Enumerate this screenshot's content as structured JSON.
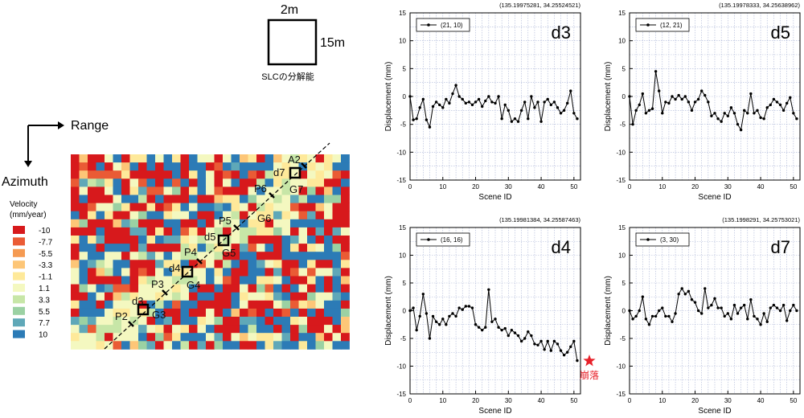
{
  "resolution_box": {
    "width_label": "2m",
    "height_label": "15m",
    "caption": "SLCの分解能"
  },
  "axes_labels": {
    "range": "Range",
    "azimuth": "Azimuth"
  },
  "legend": {
    "title_line1": "Velocity",
    "title_line2": "(mm/year)",
    "items": [
      {
        "label": "-10",
        "color": "#d7191c"
      },
      {
        "label": "-7.7",
        "color": "#ea5b35"
      },
      {
        "label": "-5.5",
        "color": "#f59a52"
      },
      {
        "label": "-3.3",
        "color": "#fdc677"
      },
      {
        "label": "-1.1",
        "color": "#fee99a"
      },
      {
        "label": "1.1",
        "color": "#f4f8c0"
      },
      {
        "label": "3.3",
        "color": "#c7e6a7"
      },
      {
        "label": "5.5",
        "color": "#9bd1a3"
      },
      {
        "label": "7.7",
        "color": "#5fa8b8"
      },
      {
        "label": "10",
        "color": "#2c7bb6"
      }
    ]
  },
  "map_labels": [
    {
      "id": "A2",
      "text": "A2"
    },
    {
      "id": "d7",
      "text": "d7"
    },
    {
      "id": "G7",
      "text": "G7"
    },
    {
      "id": "P6",
      "text": "P6"
    },
    {
      "id": "G6",
      "text": "G6"
    },
    {
      "id": "P5",
      "text": "P5"
    },
    {
      "id": "d5",
      "text": "d5"
    },
    {
      "id": "G5",
      "text": "G5"
    },
    {
      "id": "P4",
      "text": "P4"
    },
    {
      "id": "d4",
      "text": "d4"
    },
    {
      "id": "G4",
      "text": "G4"
    },
    {
      "id": "P3",
      "text": "P3"
    },
    {
      "id": "d3",
      "text": "d3"
    },
    {
      "id": "P2",
      "text": "P2"
    },
    {
      "id": "G3",
      "text": "G3"
    }
  ],
  "collapse": {
    "label": "崩落",
    "color": "#e8212a"
  },
  "chart_data": [
    {
      "type": "line",
      "tag": "d3",
      "coords": "(135.19975281, 34.25524521)",
      "series": [
        {
          "name": "(21, 10)",
          "values": [
            0,
            -4.2,
            -4,
            -2,
            -0.5,
            -4.2,
            -5.5,
            -1.8,
            -1,
            -1.5,
            -2,
            -0.5,
            -1.2,
            0.5,
            2,
            0,
            -0.5,
            -1.2,
            -1,
            -1.5,
            -1,
            -0.5,
            -1.8,
            -0.8,
            0,
            -1,
            -1.2,
            0,
            -4,
            -1.5,
            -2.5,
            -4.5,
            -4,
            -4.5,
            -2.5,
            -1,
            -4,
            0,
            -2,
            -1,
            -4.5,
            -1,
            -0.5,
            -1.5,
            -1,
            -2,
            -3,
            -2.5,
            -1.2,
            1,
            -3,
            -4
          ]
        }
      ],
      "xlabel": "Scene ID",
      "ylabel": "Displacement (mm)",
      "xlim": [
        0,
        52
      ],
      "ylim": [
        -15,
        15
      ],
      "xticks": [
        0,
        10,
        20,
        30,
        40,
        50
      ],
      "yticks": [
        15,
        10,
        5,
        0,
        -5,
        -10,
        -15
      ]
    },
    {
      "type": "line",
      "tag": "d5",
      "coords": "(135.19978333, 34.25638962)",
      "series": [
        {
          "name": "(12, 21)",
          "values": [
            0,
            -5,
            -2.5,
            -1.5,
            0.5,
            -3,
            -2.5,
            -2.2,
            4.5,
            1,
            -3,
            -1,
            -1.2,
            0,
            -0.5,
            0.2,
            -0.5,
            0,
            -1,
            -2.5,
            -1,
            -0.5,
            1,
            0.2,
            -1,
            -3.5,
            -3,
            -4,
            -4.5,
            -3,
            -3.5,
            -2,
            -3,
            -5,
            -6,
            -2.5,
            -3,
            0.5,
            -3,
            -2.5,
            -3.8,
            -4,
            -2,
            -1.5,
            -0.5,
            -1,
            -1.5,
            -2.5,
            -1.2,
            -0.2,
            -3,
            -4
          ]
        }
      ],
      "xlabel": "Scene ID",
      "ylabel": "Displacement (mm)",
      "xlim": [
        0,
        52
      ],
      "ylim": [
        -15,
        15
      ],
      "xticks": [
        0,
        10,
        20,
        30,
        40,
        50
      ],
      "yticks": [
        15,
        10,
        5,
        0,
        -5,
        -10,
        -15
      ]
    },
    {
      "type": "line",
      "tag": "d4",
      "coords": "(135.19981384, 34.25587463)",
      "series": [
        {
          "name": "(16, 16)",
          "values": [
            0,
            0.5,
            -3.5,
            -1,
            3,
            -0.5,
            -5,
            -1,
            -2,
            -2.5,
            -1.5,
            -2.5,
            -1,
            -0.5,
            -1,
            0.5,
            0.2,
            0.8,
            0.8,
            0.5,
            -2.5,
            -3,
            -3.5,
            -3,
            3.8,
            -2,
            -1.5,
            -3,
            -3.5,
            -3.2,
            -4.5,
            -3.5,
            -4,
            -4.5,
            -5.5,
            -5,
            -3.8,
            -4.5,
            -6,
            -6.2,
            -5.5,
            -7,
            -5.5,
            -7.2,
            -5.5,
            -6,
            -7.2,
            -8,
            -7.5,
            -6.5,
            -5.5,
            -9
          ]
        }
      ],
      "xlabel": "Scene ID",
      "ylabel": "Displacement (mm)",
      "xlim": [
        0,
        52
      ],
      "ylim": [
        -15,
        15
      ],
      "xticks": [
        0,
        10,
        20,
        30,
        40,
        50
      ],
      "yticks": [
        15,
        10,
        5,
        0,
        -5,
        -10,
        -15
      ]
    },
    {
      "type": "line",
      "tag": "d7",
      "coords": "(135.1998291, 34.25753021)",
      "series": [
        {
          "name": "(3, 30)",
          "values": [
            0,
            -1.5,
            -1,
            0,
            2.5,
            -1.5,
            -2.5,
            -1,
            -1,
            0,
            0.5,
            -1,
            -1,
            -2,
            -0.5,
            3,
            4,
            3,
            3.5,
            2,
            1.5,
            0,
            -0.5,
            4,
            0.5,
            1,
            2.2,
            0.5,
            0.5,
            -1,
            -0.5,
            -1.5,
            1,
            -0.5,
            0.5,
            1,
            -1.5,
            2,
            -1,
            -1.5,
            -2.5,
            -0.5,
            -2,
            0.5,
            1,
            0.5,
            0,
            1,
            -1.8,
            0,
            1,
            0
          ]
        }
      ],
      "xlabel": "Scene ID",
      "ylabel": "Displacement (mm)",
      "xlim": [
        0,
        52
      ],
      "ylim": [
        -15,
        15
      ],
      "xticks": [
        0,
        10,
        20,
        30,
        40,
        50
      ],
      "yticks": [
        15,
        10,
        5,
        0,
        -5,
        -10,
        -15
      ]
    }
  ]
}
